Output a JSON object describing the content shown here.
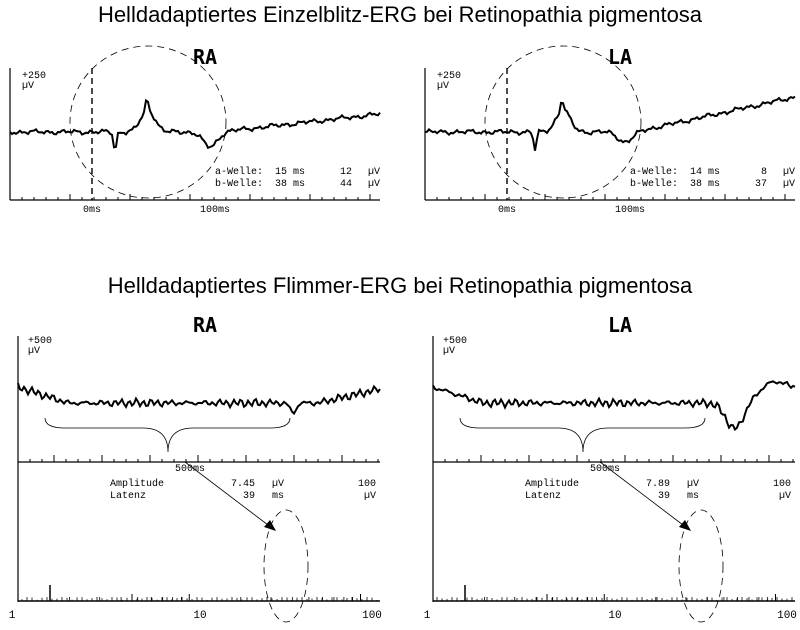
{
  "sections": [
    {
      "title": "Helldadaptiertes Einzelblitz-ERG bei Retinopathia pigmentosa",
      "panels": [
        {
          "eye": "RA",
          "scale": "+250",
          "unit": "µV",
          "time_labels": [
            "0ms",
            "100ms"
          ],
          "measurements": [
            {
              "label": "a-Welle:",
              "latency": "15 ms",
              "amplitude": "12",
              "unit": "µV"
            },
            {
              "label": "b-Welle:",
              "latency": "38 ms",
              "amplitude": "44",
              "unit": "µV"
            }
          ]
        },
        {
          "eye": "LA",
          "scale": "+250",
          "unit": "µV",
          "time_labels": [
            "0ms",
            "100ms"
          ],
          "measurements": [
            {
              "label": "a-Welle:",
              "latency": "14 ms",
              "amplitude": "8",
              "unit": "µV"
            },
            {
              "label": "b-Welle:",
              "latency": "38 ms",
              "amplitude": "37",
              "unit": "µV"
            }
          ]
        }
      ]
    },
    {
      "title": "Helldadaptiertes Flimmer-ERG bei Retinopathia pigmentosa",
      "panels": [
        {
          "eye": "RA",
          "scale": "+500",
          "unit": "µV",
          "time_label": "500ms",
          "amplitude_label": "Amplitude",
          "amplitude": "7.45",
          "amplitude_unit": "µV",
          "latency_label": "Latenz",
          "latency": "39",
          "latency_unit": "ms",
          "spectrum_max": "100",
          "spectrum_unit": "µV",
          "spectrum_ticks": [
            "1",
            "10",
            "100"
          ]
        },
        {
          "eye": "LA",
          "scale": "+500",
          "unit": "µV",
          "time_label": "500ms",
          "amplitude_label": "Amplitude",
          "amplitude": "7.89",
          "amplitude_unit": "µV",
          "latency_label": "Latenz",
          "latency": "39",
          "latency_unit": "ms",
          "spectrum_max": "100",
          "spectrum_unit": "µV",
          "spectrum_ticks": [
            "1",
            "10",
            "100"
          ]
        }
      ]
    }
  ]
}
